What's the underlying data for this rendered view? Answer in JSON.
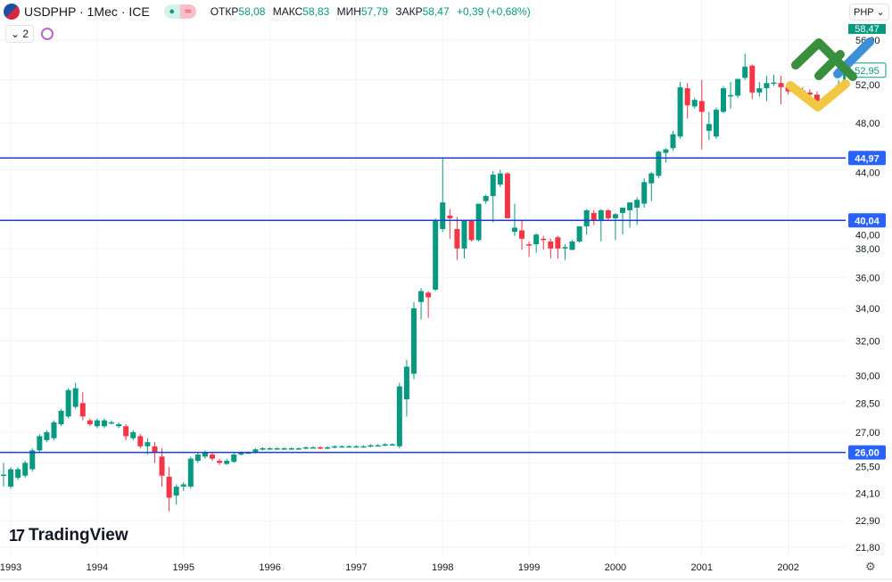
{
  "header": {
    "symbol": "USDPHP · 1Мес · ICE",
    "ohlc": [
      {
        "label": "ОТКР",
        "value": "58,08"
      },
      {
        "label": "МАКС",
        "value": "58,83"
      },
      {
        "label": "МИН",
        "value": "57,79"
      },
      {
        "label": "ЗАКР",
        "value": "58,47"
      }
    ],
    "change": "+0,39 (+0,68%)",
    "indicator_count": "2",
    "currency": "PHP"
  },
  "watermark": "TradingView",
  "colors": {
    "up": "#089981",
    "down": "#f23645",
    "level_line": "#1e3ccf",
    "level_label": "#2962ff"
  },
  "chart_data": {
    "type": "candlestick",
    "y_scale": "log",
    "yticks": [
      "56,00",
      "52,00",
      "48,00",
      "44,00",
      "40,00",
      "38,00",
      "36,00",
      "34,00",
      "32,00",
      "30,00",
      "28,50",
      "27,00",
      "25,50",
      "24,10",
      "22,90",
      "21,80"
    ],
    "ytick_values": [
      56,
      52,
      48,
      44,
      40,
      38,
      36,
      34,
      32,
      30,
      28.5,
      27,
      25.5,
      24.1,
      22.9,
      21.8
    ],
    "xticks": [
      "1993",
      "1994",
      "1995",
      "1996",
      "1997",
      "1998",
      "1999",
      "2000",
      "2001",
      "2002"
    ],
    "levels": [
      {
        "value": 44.97,
        "label": "44,97"
      },
      {
        "value": 40.04,
        "label": "40,04"
      },
      {
        "value": 26.0,
        "label": "26,00"
      }
    ],
    "last_price_label": "52,95",
    "top_price_label": "58,47",
    "candles": [
      [
        "1992-12",
        24.95,
        25.5,
        24.4,
        24.95
      ],
      [
        "1993-01",
        24.4,
        25.3,
        24.3,
        25.2
      ],
      [
        "1993-02",
        24.8,
        25.3,
        24.7,
        25.2
      ],
      [
        "1993-03",
        24.9,
        25.6,
        24.8,
        25.5
      ],
      [
        "1993-04",
        25.2,
        26.2,
        25.1,
        26.1
      ],
      [
        "1993-05",
        26.1,
        26.9,
        26.0,
        26.8
      ],
      [
        "1993-06",
        26.6,
        27.1,
        26.5,
        27.0
      ],
      [
        "1993-07",
        26.7,
        27.6,
        26.6,
        27.5
      ],
      [
        "1993-08",
        27.4,
        28.2,
        27.3,
        28.1
      ],
      [
        "1993-09",
        27.8,
        29.3,
        27.7,
        29.2
      ],
      [
        "1993-10",
        28.3,
        29.6,
        28.2,
        29.3
      ],
      [
        "1993-11",
        28.5,
        29.1,
        27.6,
        27.8
      ],
      [
        "1993-12",
        27.6,
        27.7,
        27.3,
        27.4
      ],
      [
        "1994-01",
        27.3,
        27.7,
        27.2,
        27.6
      ],
      [
        "1994-02",
        27.3,
        27.7,
        27.2,
        27.6
      ],
      [
        "1994-03",
        27.5,
        27.6,
        27.4,
        27.5
      ],
      [
        "1994-04",
        27.3,
        27.5,
        27.2,
        27.4
      ],
      [
        "1994-05",
        27.3,
        27.4,
        26.6,
        26.8
      ],
      [
        "1994-06",
        26.7,
        27.1,
        26.6,
        27.0
      ],
      [
        "1994-07",
        26.8,
        26.9,
        26.2,
        26.3
      ],
      [
        "1994-08",
        26.3,
        26.7,
        25.9,
        26.5
      ],
      [
        "1994-09",
        26.3,
        26.5,
        25.5,
        26.0
      ],
      [
        "1994-10",
        25.8,
        26.2,
        24.4,
        24.9
      ],
      [
        "1994-11",
        24.85,
        25.3,
        23.3,
        23.9
      ],
      [
        "1994-12",
        24.0,
        24.5,
        23.6,
        24.4
      ],
      [
        "1995-01",
        24.4,
        24.6,
        24.2,
        24.5
      ],
      [
        "1995-02",
        24.4,
        25.8,
        24.3,
        25.7
      ],
      [
        "1995-03",
        25.6,
        26.0,
        25.5,
        25.9
      ],
      [
        "1995-04",
        25.8,
        26.1,
        25.7,
        26.0
      ],
      [
        "1995-05",
        25.9,
        26.0,
        25.6,
        25.7
      ],
      [
        "1995-06",
        25.6,
        25.7,
        25.4,
        25.5
      ],
      [
        "1995-07",
        25.45,
        25.7,
        25.4,
        25.6
      ],
      [
        "1995-08",
        25.55,
        26.0,
        25.5,
        25.9
      ],
      [
        "1995-09",
        25.9,
        26.05,
        25.85,
        26.0
      ],
      [
        "1995-10",
        26.0,
        26.05,
        25.95,
        26.0
      ],
      [
        "1995-11",
        26.0,
        26.2,
        25.95,
        26.15
      ],
      [
        "1995-12",
        26.15,
        26.25,
        26.1,
        26.2
      ],
      [
        "1996-01",
        26.2,
        26.25,
        26.15,
        26.2
      ],
      [
        "1996-02",
        26.2,
        26.25,
        26.15,
        26.2
      ],
      [
        "1996-03",
        26.2,
        26.25,
        26.15,
        26.2
      ],
      [
        "1996-04",
        26.2,
        26.25,
        26.15,
        26.2
      ],
      [
        "1996-05",
        26.2,
        26.25,
        26.15,
        26.2
      ],
      [
        "1996-06",
        26.2,
        26.3,
        26.15,
        26.25
      ],
      [
        "1996-07",
        26.25,
        26.3,
        26.2,
        26.25
      ],
      [
        "1996-08",
        26.25,
        26.3,
        26.15,
        26.2
      ],
      [
        "1996-09",
        26.2,
        26.3,
        26.15,
        26.25
      ],
      [
        "1996-10",
        26.25,
        26.35,
        26.2,
        26.3
      ],
      [
        "1996-11",
        26.3,
        26.35,
        26.25,
        26.3
      ],
      [
        "1996-12",
        26.3,
        26.35,
        26.25,
        26.3
      ],
      [
        "1997-01",
        26.3,
        26.35,
        26.25,
        26.3
      ],
      [
        "1997-02",
        26.3,
        26.35,
        26.25,
        26.3
      ],
      [
        "1997-03",
        26.3,
        26.4,
        26.25,
        26.35
      ],
      [
        "1997-04",
        26.35,
        26.4,
        26.3,
        26.35
      ],
      [
        "1997-05",
        26.35,
        26.45,
        26.3,
        26.4
      ],
      [
        "1997-06",
        26.4,
        26.45,
        26.35,
        26.4
      ],
      [
        "1997-07",
        26.3,
        29.6,
        26.2,
        29.4
      ],
      [
        "1997-08",
        28.7,
        30.9,
        27.8,
        30.5
      ],
      [
        "1997-09",
        30.1,
        34.4,
        29.8,
        34.0
      ],
      [
        "1997-10",
        34.4,
        35.3,
        33.3,
        35.1
      ],
      [
        "1997-11",
        35.0,
        35.1,
        33.4,
        34.7
      ],
      [
        "1997-12",
        35.2,
        40.2,
        35.1,
        40.04
      ],
      [
        "1998-01",
        39.4,
        45.0,
        39.2,
        41.4
      ],
      [
        "1998-02",
        40.4,
        40.9,
        38.7,
        40.2
      ],
      [
        "1998-03",
        39.4,
        40.3,
        37.2,
        38.0
      ],
      [
        "1998-04",
        38.0,
        40.1,
        37.3,
        40.0
      ],
      [
        "1998-05",
        40.0,
        40.1,
        38.5,
        38.6
      ],
      [
        "1998-06",
        38.6,
        41.3,
        38.5,
        41.3
      ],
      [
        "1998-07",
        41.5,
        42.0,
        41.3,
        41.9
      ],
      [
        "1998-08",
        41.9,
        43.9,
        39.9,
        43.6
      ],
      [
        "1998-09",
        42.8,
        44.0,
        42.6,
        43.7
      ],
      [
        "1998-10",
        43.7,
        43.8,
        40.2,
        40.2
      ],
      [
        "1998-11",
        39.2,
        41.3,
        38.9,
        39.5
      ],
      [
        "1998-12",
        39.3,
        40.1,
        37.9,
        38.7
      ],
      [
        "1999-01",
        38.3,
        38.5,
        37.4,
        38.25
      ],
      [
        "1999-02",
        38.3,
        39.1,
        37.7,
        39.0
      ],
      [
        "1999-03",
        38.7,
        38.9,
        37.9,
        38.6
      ],
      [
        "1999-04",
        38.5,
        38.7,
        37.3,
        38.0
      ],
      [
        "1999-05",
        38.8,
        38.9,
        37.3,
        38.0
      ],
      [
        "1999-06",
        38.0,
        38.3,
        37.2,
        38.1
      ],
      [
        "1999-07",
        37.9,
        38.6,
        37.9,
        38.5
      ],
      [
        "1999-08",
        38.5,
        39.6,
        38.4,
        39.6
      ],
      [
        "1999-09",
        39.6,
        40.9,
        39.0,
        40.8
      ],
      [
        "1999-10",
        40.6,
        40.8,
        39.7,
        40.0
      ],
      [
        "1999-11",
        40.1,
        40.9,
        38.5,
        40.8
      ],
      [
        "1999-12",
        40.8,
        40.9,
        40.1,
        40.2
      ],
      [
        "2000-01",
        40.2,
        40.6,
        38.6,
        40.5
      ],
      [
        "2000-02",
        40.6,
        41.0,
        39.0,
        41.0
      ],
      [
        "2000-03",
        40.8,
        41.3,
        39.5,
        41.4
      ],
      [
        "2000-04",
        41.0,
        41.8,
        39.7,
        41.6
      ],
      [
        "2000-05",
        41.3,
        43.3,
        41.0,
        43.0
      ],
      [
        "2000-06",
        42.9,
        43.8,
        41.5,
        43.7
      ],
      [
        "2000-07",
        43.5,
        45.6,
        43.3,
        45.5
      ],
      [
        "2000-08",
        45.4,
        45.8,
        44.6,
        45.7
      ],
      [
        "2000-09",
        45.8,
        47.3,
        45.6,
        47.0
      ],
      [
        "2000-10",
        46.8,
        51.8,
        46.6,
        51.3
      ],
      [
        "2000-11",
        51.2,
        51.7,
        48.4,
        49.6
      ],
      [
        "2000-12",
        49.5,
        50.3,
        49.3,
        50.1
      ],
      [
        "2001-01",
        50.0,
        52.0,
        45.7,
        49.0
      ],
      [
        "2001-02",
        47.3,
        49.0,
        46.5,
        47.9
      ],
      [
        "2001-03",
        46.8,
        49.4,
        46.6,
        49.2
      ],
      [
        "2001-04",
        49.0,
        51.4,
        48.9,
        51.2
      ],
      [
        "2001-05",
        50.5,
        51.8,
        49.3,
        50.55
      ],
      [
        "2001-06",
        50.5,
        52.1,
        50.3,
        52.1
      ],
      [
        "2001-07",
        52.2,
        54.6,
        52.0,
        53.3
      ],
      [
        "2001-08",
        53.4,
        53.5,
        50.2,
        50.8
      ],
      [
        "2001-09",
        50.8,
        51.8,
        50.4,
        51.2
      ],
      [
        "2001-10",
        51.2,
        52.4,
        50.0,
        51.7
      ],
      [
        "2001-11",
        51.7,
        52.5,
        51.4,
        51.75
      ],
      [
        "2001-12",
        51.7,
        52.4,
        49.7,
        51.3
      ],
      [
        "2002-01",
        51.3,
        51.5,
        50.6,
        50.9
      ],
      [
        "2002-02",
        50.9,
        51.2,
        50.6,
        51.0
      ],
      [
        "2002-03",
        51.0,
        51.3,
        50.4,
        50.8
      ],
      [
        "2002-04",
        50.8,
        51.1,
        50.3,
        50.6
      ],
      [
        "2002-05",
        50.6,
        50.9,
        49.8,
        49.9
      ],
      [
        "2002-06",
        49.8,
        50.3,
        49.5,
        50.2
      ],
      [
        "2002-07",
        50.2,
        51.0,
        50.0,
        50.9
      ],
      [
        "2002-08",
        50.9,
        52.0,
        50.7,
        51.5
      ],
      [
        "2002-09",
        51.6,
        53.0,
        51.4,
        52.95
      ]
    ]
  }
}
